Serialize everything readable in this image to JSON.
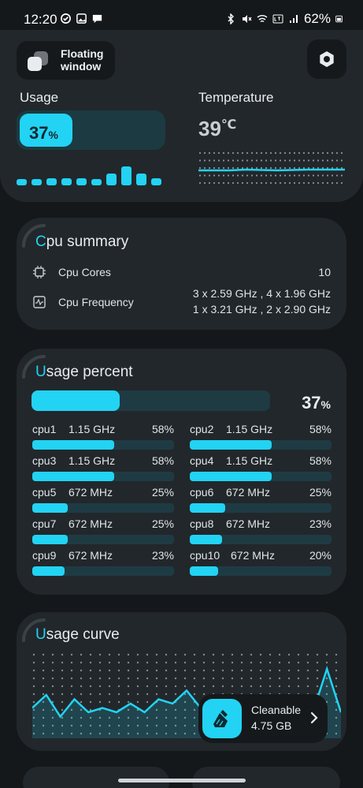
{
  "status_bar": {
    "time": "12:20",
    "battery": "62%",
    "left_icons": [
      "check-circle-icon",
      "image-icon",
      "chat-bubble-icon"
    ],
    "right_icons": [
      "bluetooth-icon",
      "mute-icon",
      "wifi-icon",
      "volte-lte-icon",
      "signal-icon",
      "battery-icon"
    ]
  },
  "top_panel": {
    "floating_window_label": "Floating window",
    "usage": {
      "label": "Usage",
      "value": "37",
      "unit": "%",
      "fraction": 0.37
    },
    "usage_history": [
      0.25,
      0.25,
      0.3,
      0.3,
      0.3,
      0.25,
      0.5,
      0.8,
      0.5,
      0.3
    ],
    "temperature": {
      "label": "Temperature",
      "value": "39",
      "unit": "℃"
    }
  },
  "cpu_summary": {
    "title_first": "C",
    "title_rest": "pu summary",
    "cores_label": "Cpu Cores",
    "cores_value": "10",
    "freq_label": "Cpu Frequency",
    "freq_line1": "3 x 2.59 GHz , 4 x 1.96 GHz",
    "freq_line2": "1 x 3.21 GHz , 2 x 2.90 GHz"
  },
  "usage_percent": {
    "title_first": "U",
    "title_rest": "sage percent",
    "overall_value": "37",
    "overall_unit": "%",
    "overall_fraction": 0.37,
    "cores": [
      {
        "name": "cpu1",
        "freq": "1.15 GHz",
        "pct": "58%",
        "fraction": 0.58
      },
      {
        "name": "cpu2",
        "freq": "1.15 GHz",
        "pct": "58%",
        "fraction": 0.58
      },
      {
        "name": "cpu3",
        "freq": "1.15 GHz",
        "pct": "58%",
        "fraction": 0.58
      },
      {
        "name": "cpu4",
        "freq": "1.15 GHz",
        "pct": "58%",
        "fraction": 0.58
      },
      {
        "name": "cpu5",
        "freq": "672 MHz",
        "pct": "25%",
        "fraction": 0.25
      },
      {
        "name": "cpu6",
        "freq": "672 MHz",
        "pct": "25%",
        "fraction": 0.25
      },
      {
        "name": "cpu7",
        "freq": "672 MHz",
        "pct": "25%",
        "fraction": 0.25
      },
      {
        "name": "cpu8",
        "freq": "672 MHz",
        "pct": "23%",
        "fraction": 0.23
      },
      {
        "name": "cpu9",
        "freq": "672 MHz",
        "pct": "23%",
        "fraction": 0.23
      },
      {
        "name": "cpu10",
        "freq": "672 MHz",
        "pct": "20%",
        "fraction": 0.2
      }
    ]
  },
  "usage_curve": {
    "title_first": "U",
    "title_rest": "sage curve",
    "series": [
      0.35,
      0.5,
      0.25,
      0.45,
      0.3,
      0.35,
      0.3,
      0.4,
      0.3,
      0.45,
      0.4,
      0.55,
      0.35,
      0.25,
      0.4,
      0.45,
      0.2,
      0.25,
      0.3,
      0.25,
      0.3,
      0.8,
      0.3
    ]
  },
  "cleanable": {
    "label": "Cleanable",
    "size": "4.75 GB"
  },
  "colors": {
    "accent": "#22d3f4",
    "background": "#14181b",
    "card": "#22272b",
    "track": "#1e3b43"
  }
}
